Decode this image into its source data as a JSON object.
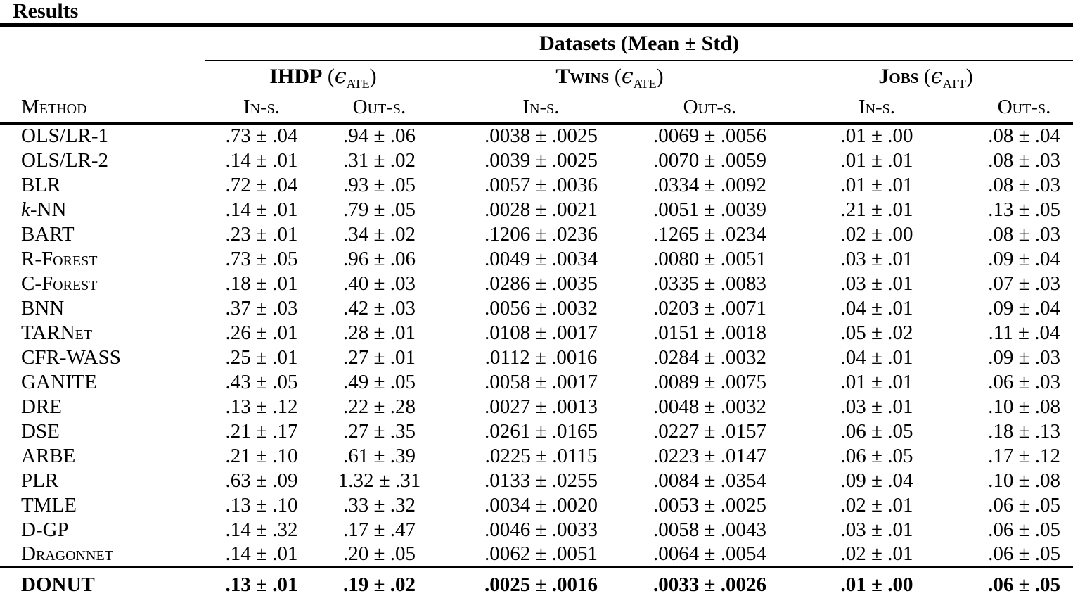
{
  "page_title": "Results",
  "colors": {
    "text": "#000000",
    "rule": "#000000",
    "background": "#ffffff"
  },
  "table": {
    "datasets_header": "Datasets (Mean ± Std)",
    "method_header": "Method",
    "subheaders": {
      "in_s": "In-s.",
      "out_s": "Out-s."
    },
    "groups": [
      {
        "name": "IHDP",
        "epsilon": "ϵ",
        "metric_sub": "ATE"
      },
      {
        "name": "Twins",
        "epsilon": "ϵ",
        "metric_sub": "ATE"
      },
      {
        "name": "Jobs",
        "epsilon": "ϵ",
        "metric_sub": "ATT"
      }
    ],
    "rows": [
      {
        "method": "OLS/LR-1",
        "values": [
          ".73 ± .04",
          ".94 ± .06",
          ".0038 ± .0025",
          ".0069 ± .0056",
          ".01 ± .00",
          ".08 ± .04"
        ]
      },
      {
        "method": "OLS/LR-2",
        "values": [
          ".14 ± .01",
          ".31 ± .02",
          ".0039 ± .0025",
          ".0070 ± .0059",
          ".01 ± .01",
          ".08 ± .03"
        ]
      },
      {
        "method": "BLR",
        "values": [
          ".72 ± .04",
          ".93 ± .05",
          ".0057 ± .0036",
          ".0334 ± .0092",
          ".01 ± .01",
          ".08 ± .03"
        ]
      },
      {
        "method": "k-NN",
        "italic_lead": true,
        "values": [
          ".14 ± .01",
          ".79 ± .05",
          ".0028 ± .0021",
          ".0051 ± .0039",
          ".21 ± .01",
          ".13 ± .05"
        ]
      },
      {
        "method": "BART",
        "values": [
          ".23 ± .01",
          ".34 ± .02",
          ".1206 ± .0236",
          ".1265 ± .0234",
          ".02 ± .00",
          ".08 ± .03"
        ]
      },
      {
        "method": "R-Forest",
        "values": [
          ".73 ± .05",
          ".96 ± .06",
          ".0049 ± .0034",
          ".0080 ± .0051",
          ".03 ± .01",
          ".09 ± .04"
        ]
      },
      {
        "method": "C-Forest",
        "values": [
          ".18 ± .01",
          ".40 ± .03",
          ".0286 ± .0035",
          ".0335 ± .0083",
          ".03 ± .01",
          ".07 ± .03"
        ]
      },
      {
        "method": "BNN",
        "values": [
          ".37 ± .03",
          ".42 ± .03",
          ".0056 ± .0032",
          ".0203 ± .0071",
          ".04 ± .01",
          ".09 ± .04"
        ]
      },
      {
        "method": "TARNet",
        "values": [
          ".26 ± .01",
          ".28 ± .01",
          ".0108 ± .0017",
          ".0151 ± .0018",
          ".05 ± .02",
          ".11 ± .04"
        ]
      },
      {
        "method": "CFR-WASS",
        "values": [
          ".25 ± .01",
          ".27 ± .01",
          ".0112 ± .0016",
          ".0284 ± .0032",
          ".04 ± .01",
          ".09 ± .03"
        ]
      },
      {
        "method": "GANITE",
        "values": [
          ".43 ± .05",
          ".49 ± .05",
          ".0058 ± .0017",
          ".0089 ± .0075",
          ".01 ± .01",
          ".06 ± .03"
        ]
      },
      {
        "method": "DRE",
        "values": [
          ".13 ± .12",
          ".22 ± .28",
          ".0027 ± .0013",
          ".0048 ± .0032",
          ".03 ± .01",
          ".10 ± .08"
        ]
      },
      {
        "method": "DSE",
        "values": [
          ".21 ± .17",
          ".27 ± .35",
          ".0261 ± .0165",
          ".0227 ± .0157",
          ".06 ± .05",
          ".18 ± .13"
        ]
      },
      {
        "method": "ARBE",
        "values": [
          ".21 ± .10",
          ".61 ± .39",
          ".0225 ± .0115",
          ".0223 ± .0147",
          ".06 ± .05",
          ".17 ± .12"
        ]
      },
      {
        "method": "PLR",
        "values": [
          ".63 ± .09",
          "1.32 ± .31",
          ".0133 ± .0255",
          ".0084 ± .0354",
          ".09 ± .04",
          ".10 ± .08"
        ]
      },
      {
        "method": "TMLE",
        "values": [
          ".13 ± .10",
          ".33 ± .32",
          ".0034 ± .0020",
          ".0053 ± .0025",
          ".02 ± .01",
          ".06 ± .05"
        ]
      },
      {
        "method": "D-GP",
        "values": [
          ".14 ± .32",
          ".17 ± .47",
          ".0046 ± .0033",
          ".0058 ± .0043",
          ".03 ± .01",
          ".06 ± .05"
        ]
      },
      {
        "method": "Dragonnet",
        "values": [
          ".14 ± .01",
          ".20 ± .05",
          ".0062 ± .0051",
          ".0064 ± .0054",
          ".02 ± .01",
          ".06 ± .05"
        ]
      }
    ],
    "footer_row": {
      "method": "DONUT",
      "values": [
        ".13 ± .01",
        ".19 ± .02",
        ".0025 ± .0016",
        ".0033 ± .0026",
        ".01 ± .00",
        ".06 ± .05"
      ]
    }
  }
}
